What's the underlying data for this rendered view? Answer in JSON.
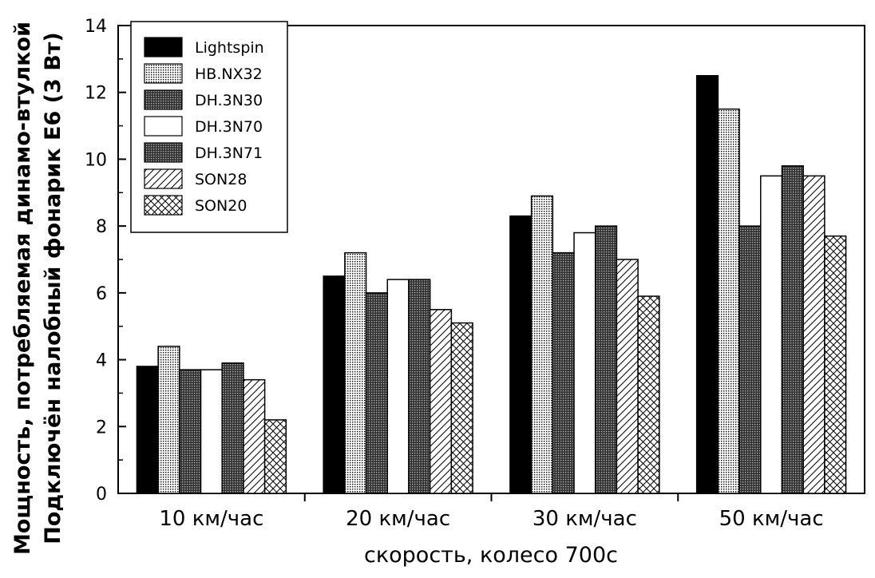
{
  "chart_data": {
    "type": "bar",
    "categories": [
      "10 км/час",
      "20 км/час",
      "30 км/час",
      "50 км/час"
    ],
    "series": [
      {
        "name": "Lightspin",
        "values": [
          3.8,
          6.5,
          8.3,
          12.5
        ],
        "pattern": "solid"
      },
      {
        "name": "HB.NX32",
        "values": [
          4.4,
          7.2,
          8.9,
          11.5
        ],
        "pattern": "fine-dots"
      },
      {
        "name": "DH.3N30",
        "values": [
          3.7,
          6.0,
          7.2,
          8.0
        ],
        "pattern": "dense-grid"
      },
      {
        "name": "DH.3N70",
        "values": [
          3.7,
          6.4,
          7.8,
          9.5
        ],
        "pattern": "empty"
      },
      {
        "name": "DH.3N71",
        "values": [
          3.9,
          6.4,
          8.0,
          9.8
        ],
        "pattern": "dense-grid"
      },
      {
        "name": "SON28",
        "values": [
          3.4,
          5.5,
          7.0,
          9.5
        ],
        "pattern": "diagonal"
      },
      {
        "name": "SON20",
        "values": [
          2.2,
          5.1,
          5.9,
          7.7
        ],
        "pattern": "crosshatch"
      }
    ],
    "xlabel": "скорость, колесо 700с",
    "ylabel_line1": "Мощность, потребляемая динамо-втулкой",
    "ylabel_line2": "Подключён налобный фонарик Е6 (3 Вт)",
    "ylim": [
      0,
      14
    ],
    "yticks": [
      0,
      2,
      4,
      6,
      8,
      10,
      12,
      14
    ],
    "grid": false,
    "legend_position": "top-left"
  }
}
